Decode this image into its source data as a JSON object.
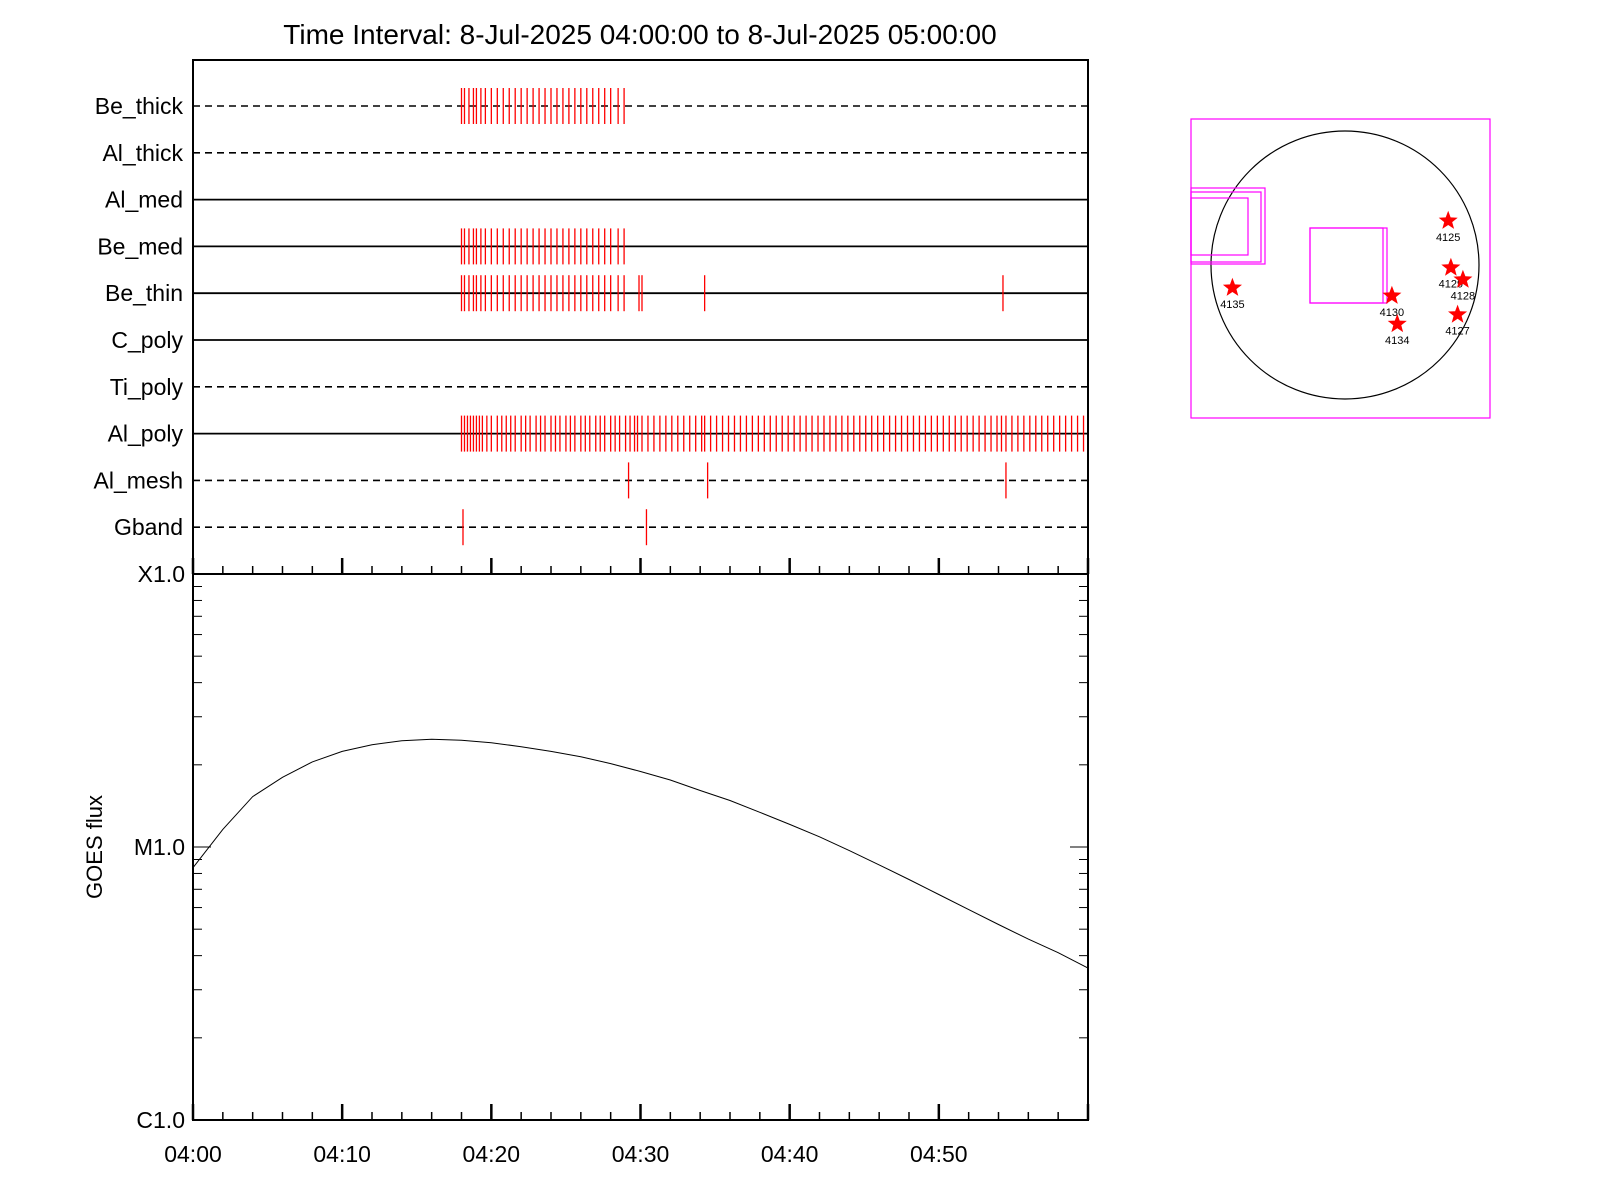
{
  "title": "Time Interval:  8-Jul-2025 04:00:00 to  8-Jul-2025 05:00:00",
  "colors": {
    "frame": "#000000",
    "event": "#ff0000",
    "fov": "#ff00ff",
    "disk": "#000000",
    "star": "#ff0000"
  },
  "chart_data": [
    {
      "type": "timeline",
      "x_unit": "minutes after 04:00",
      "xlim": [
        0,
        60
      ],
      "x_tick_minutes": [
        0,
        10,
        20,
        30,
        40,
        50
      ],
      "x_tick_labels": [
        "04:00",
        "04:10",
        "04:20",
        "04:30",
        "04:40",
        "04:50"
      ],
      "rows": [
        {
          "label": "Be_thick",
          "line": "dashed",
          "events": [
            18.0,
            18.2,
            18.5,
            18.8,
            19.0,
            19.3,
            19.6,
            20.0,
            20.4,
            20.8,
            21.2,
            21.6,
            22.0,
            22.4,
            22.8,
            23.2,
            23.6,
            24.0,
            24.4,
            24.8,
            25.2,
            25.6,
            26.0,
            26.4,
            26.8,
            27.2,
            27.6,
            28.0,
            28.5,
            28.9
          ]
        },
        {
          "label": "Al_thick",
          "line": "dashed",
          "events": []
        },
        {
          "label": "Al_med",
          "line": "solid",
          "events": []
        },
        {
          "label": "Be_med",
          "line": "solid",
          "events": [
            18.0,
            18.2,
            18.5,
            18.8,
            19.0,
            19.3,
            19.6,
            20.0,
            20.4,
            20.8,
            21.2,
            21.6,
            22.0,
            22.4,
            22.8,
            23.2,
            23.6,
            24.0,
            24.4,
            24.8,
            25.2,
            25.6,
            26.0,
            26.4,
            26.8,
            27.2,
            27.6,
            28.0,
            28.5,
            28.9
          ]
        },
        {
          "label": "Be_thin",
          "line": "solid",
          "events": [
            18.0,
            18.2,
            18.5,
            18.8,
            19.0,
            19.3,
            19.6,
            20.0,
            20.4,
            20.8,
            21.2,
            21.6,
            22.0,
            22.4,
            22.8,
            23.2,
            23.6,
            24.0,
            24.4,
            24.8,
            25.2,
            25.6,
            26.0,
            26.4,
            26.8,
            27.2,
            27.6,
            28.0,
            28.5,
            28.9,
            29.9,
            30.1,
            34.3,
            54.3
          ]
        },
        {
          "label": "C_poly",
          "line": "solid",
          "events": []
        },
        {
          "label": "Ti_poly",
          "line": "dashed",
          "events": []
        },
        {
          "label": "Al_poly",
          "line": "solid",
          "events": [
            18.0,
            18.2,
            18.4,
            18.6,
            18.8,
            19.0,
            19.2,
            19.4,
            19.7,
            20.0,
            20.4,
            20.7,
            21.0,
            21.3,
            21.6,
            22.0,
            22.3,
            22.6,
            23.0,
            23.3,
            23.6,
            24.0,
            24.3,
            24.6,
            25.0,
            25.3,
            25.6,
            26.0,
            26.3,
            26.6,
            27.0,
            27.3,
            27.6,
            28.0,
            28.3,
            28.6,
            29.0,
            29.3,
            29.6,
            29.8,
            30.1,
            30.5,
            30.9,
            31.3,
            31.7,
            32.1,
            32.5,
            32.9,
            33.3,
            33.7,
            34.1,
            34.3,
            34.7,
            35.1,
            35.5,
            35.9,
            36.3,
            36.7,
            37.1,
            37.5,
            37.9,
            38.3,
            38.7,
            39.1,
            39.5,
            39.9,
            40.3,
            40.7,
            41.1,
            41.5,
            41.9,
            42.3,
            42.7,
            43.1,
            43.5,
            43.9,
            44.3,
            44.7,
            45.1,
            45.5,
            45.9,
            46.3,
            46.7,
            47.1,
            47.5,
            47.9,
            48.3,
            48.7,
            49.1,
            49.5,
            49.9,
            50.3,
            50.7,
            51.1,
            51.5,
            51.9,
            52.3,
            52.7,
            53.1,
            53.5,
            53.9,
            54.2,
            54.5,
            54.9,
            55.3,
            55.7,
            56.1,
            56.5,
            56.9,
            57.3,
            57.7,
            58.1,
            58.5,
            58.9,
            59.3,
            59.7
          ]
        },
        {
          "label": "Al_mesh",
          "line": "dashed",
          "events": [
            29.2,
            34.5,
            54.5
          ]
        },
        {
          "label": "Gband",
          "line": "dashed",
          "events": [
            18.1,
            30.4
          ]
        }
      ]
    },
    {
      "type": "line",
      "ylabel": "GOES flux",
      "yscale": "log",
      "ylim": [
        1e-06,
        0.0001
      ],
      "y_ticks": [
        1e-06,
        1e-05,
        0.0001
      ],
      "y_tick_labels": [
        "C1.0",
        "M1.0",
        "X1.0"
      ],
      "x_unit": "minutes after 04:00",
      "xlim": [
        0,
        60
      ],
      "x_tick_minutes": [
        0,
        10,
        20,
        30,
        40,
        50
      ],
      "x_tick_labels": [
        "04:00",
        "04:10",
        "04:20",
        "04:30",
        "04:40",
        "04:50"
      ],
      "x": [
        0,
        2,
        4,
        6,
        8,
        10,
        12,
        14,
        16,
        18,
        20,
        22,
        24,
        26,
        28,
        30,
        32,
        34,
        36,
        38,
        40,
        42,
        44,
        46,
        48,
        50,
        52,
        54,
        56,
        58,
        60
      ],
      "y": [
        8.4e-06,
        1.16e-05,
        1.53e-05,
        1.8e-05,
        2.05e-05,
        2.24e-05,
        2.37e-05,
        2.45e-05,
        2.48e-05,
        2.46e-05,
        2.41e-05,
        2.33e-05,
        2.24e-05,
        2.14e-05,
        2.02e-05,
        1.89e-05,
        1.76e-05,
        1.61e-05,
        1.48e-05,
        1.34e-05,
        1.21e-05,
        1.09e-05,
        9.7e-06,
        8.6e-06,
        7.6e-06,
        6.7e-06,
        5.9e-06,
        5.2e-06,
        4.6e-06,
        4.1e-06,
        3.6e-06
      ]
    },
    {
      "type": "scatter",
      "description": "solar disk map",
      "points": [
        {
          "label": "4125",
          "x": 0.77,
          "y": 0.33
        },
        {
          "label": "4129",
          "x": 0.79,
          "y": -0.02
        },
        {
          "label": "4128",
          "x": 0.88,
          "y": -0.11
        },
        {
          "label": "4127",
          "x": 0.84,
          "y": -0.37
        },
        {
          "label": "4130",
          "x": 0.35,
          "y": -0.23
        },
        {
          "label": "4134",
          "x": 0.39,
          "y": -0.44
        },
        {
          "label": "4135",
          "x": -0.84,
          "y": -0.17
        }
      ]
    }
  ]
}
